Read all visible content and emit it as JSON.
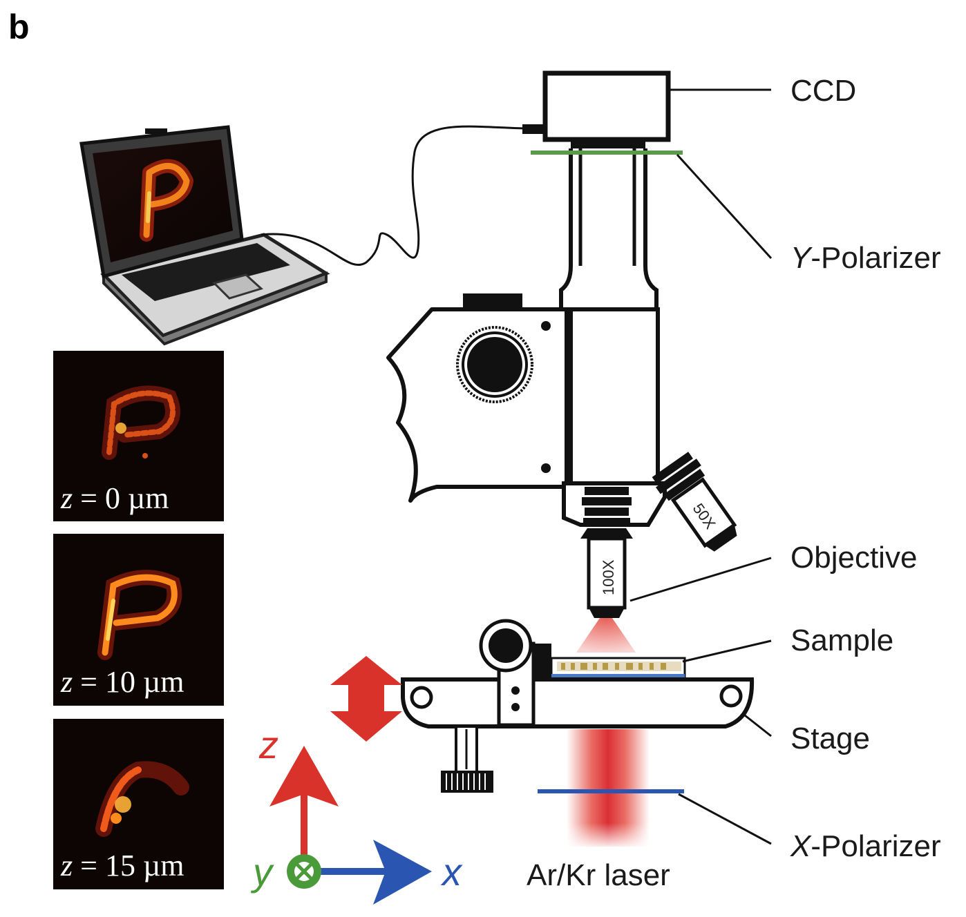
{
  "panel_letter": "b",
  "labels": {
    "ccd": "CCD",
    "y_polarizer_italic": "Y",
    "y_polarizer_rest": "-Polarizer",
    "objective": "Objective",
    "sample": "Sample",
    "stage": "Stage",
    "x_polarizer_italic": "X",
    "x_polarizer_rest": "-Polarizer",
    "laser": "Ar/Kr laser"
  },
  "objective_marks": {
    "main": "100X",
    "side": "50X"
  },
  "z_images": [
    {
      "z_var": "z",
      "z_rest": " = 0 µm"
    },
    {
      "z_var": "z",
      "z_rest": " = 10 µm"
    },
    {
      "z_var": "z",
      "z_rest": " = 15 µm"
    }
  ],
  "axes": {
    "z": "z",
    "y": "y",
    "x": "x"
  },
  "colors": {
    "y_polarizer": "#5a9a4a",
    "x_polarizer": "#2a55b0",
    "laser": "#d8322a",
    "axis_z": "#d8322a",
    "axis_x": "#2a55b0",
    "axis_y": "#4a9a3a",
    "height_arrow": "#d8322a"
  },
  "icons": [
    "laptop-icon",
    "microscope-icon",
    "ccd-camera-icon",
    "focus-knob-icon",
    "axis-triad-icon",
    "double-arrow-icon"
  ]
}
